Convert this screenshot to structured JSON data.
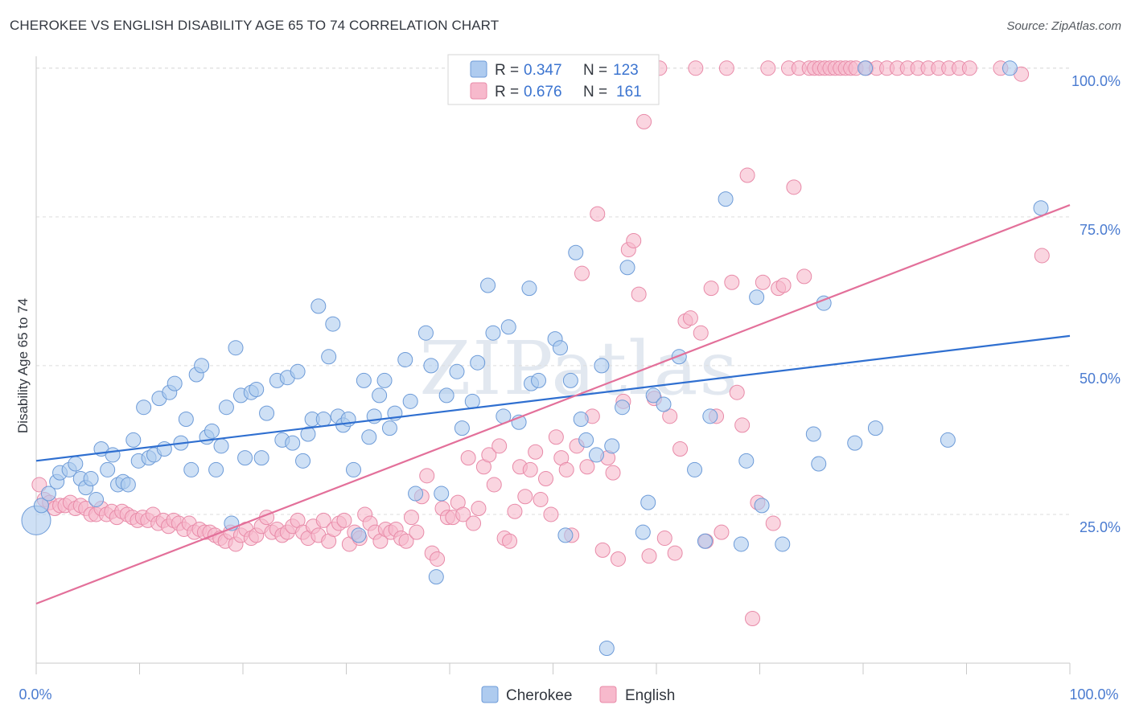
{
  "title": "CHEROKEE VS ENGLISH DISABILITY AGE 65 TO 74 CORRELATION CHART",
  "source": "Source: ZipAtlas.com",
  "watermark": "ZIPatlas",
  "colors": {
    "cherokee_fill": "#aecbef",
    "cherokee_stroke": "#6d9bd8",
    "cherokee_line": "#2f6fd0",
    "english_fill": "#f7b9cc",
    "english_stroke": "#e88aa8",
    "english_line": "#e3709a",
    "grid": "#dddddd",
    "axis_text": "#4a7bd0"
  },
  "legend": {
    "rows": [
      {
        "r_label": "R =",
        "r_value": "0.347",
        "n_label": "N =",
        "n_value": "123"
      },
      {
        "r_label": "R =",
        "r_value": "0.676",
        "n_label": "N =",
        "n_value": "161"
      }
    ]
  },
  "chart_data": {
    "type": "scatter",
    "xlabel": "",
    "ylabel": "Disability Age 65 to 74",
    "xlim": [
      0,
      100
    ],
    "ylim": [
      0,
      102
    ],
    "x_tick_labels": [
      "0.0%",
      "100.0%"
    ],
    "y_ticks": [
      {
        "value": 25,
        "label": "25.0%"
      },
      {
        "value": 50,
        "label": "50.0%"
      },
      {
        "value": 75,
        "label": "75.0%"
      },
      {
        "value": 100,
        "label": "100.0%"
      }
    ],
    "grid": "horizontal-dashed",
    "legend_position": "top-center",
    "series": [
      {
        "name": "Cherokee",
        "trend": [
          [
            0,
            34.0
          ],
          [
            100,
            55.0
          ]
        ],
        "points": [
          [
            0,
            24
          ],
          [
            0.5,
            26.5
          ],
          [
            1.2,
            28.5
          ],
          [
            2,
            30.5
          ],
          [
            2.3,
            32
          ],
          [
            3.2,
            32.5
          ],
          [
            3.8,
            33.5
          ],
          [
            4.3,
            31
          ],
          [
            4.8,
            29.5
          ],
          [
            5.3,
            31
          ],
          [
            5.8,
            27.5
          ],
          [
            6.3,
            36
          ],
          [
            6.9,
            32.5
          ],
          [
            7.4,
            35
          ],
          [
            7.9,
            30
          ],
          [
            8.4,
            30.5
          ],
          [
            8.9,
            30
          ],
          [
            9.4,
            37.5
          ],
          [
            9.9,
            34
          ],
          [
            10.4,
            43
          ],
          [
            10.9,
            34.5
          ],
          [
            11.4,
            35
          ],
          [
            11.9,
            44.5
          ],
          [
            12.4,
            36
          ],
          [
            12.9,
            45.5
          ],
          [
            13.4,
            47
          ],
          [
            14.0,
            37
          ],
          [
            14.5,
            41
          ],
          [
            15.0,
            32.5
          ],
          [
            15.5,
            48.5
          ],
          [
            16.0,
            50
          ],
          [
            16.5,
            38
          ],
          [
            17.0,
            39
          ],
          [
            17.4,
            32.5
          ],
          [
            17.9,
            36.5
          ],
          [
            18.4,
            43
          ],
          [
            18.9,
            23.5
          ],
          [
            19.3,
            53
          ],
          [
            19.8,
            45
          ],
          [
            20.2,
            34.5
          ],
          [
            20.8,
            45.5
          ],
          [
            21.3,
            46
          ],
          [
            21.8,
            34.5
          ],
          [
            22.3,
            42
          ],
          [
            23.3,
            47.5
          ],
          [
            23.8,
            37.5
          ],
          [
            24.3,
            48
          ],
          [
            24.8,
            37
          ],
          [
            25.3,
            49
          ],
          [
            25.8,
            34
          ],
          [
            26.3,
            38.5
          ],
          [
            26.7,
            41
          ],
          [
            27.3,
            60
          ],
          [
            27.8,
            41
          ],
          [
            28.3,
            51.5
          ],
          [
            28.7,
            57
          ],
          [
            29.2,
            41.5
          ],
          [
            29.7,
            40
          ],
          [
            30.2,
            41
          ],
          [
            30.7,
            32.5
          ],
          [
            31.2,
            21.5
          ],
          [
            31.7,
            47.5
          ],
          [
            32.2,
            38
          ],
          [
            32.7,
            41.5
          ],
          [
            33.2,
            45
          ],
          [
            33.7,
            47.5
          ],
          [
            34.2,
            39.5
          ],
          [
            34.7,
            42
          ],
          [
            35.7,
            51
          ],
          [
            36.2,
            44
          ],
          [
            36.7,
            28.5
          ],
          [
            37.7,
            55.5
          ],
          [
            38.2,
            50
          ],
          [
            38.7,
            14.5
          ],
          [
            39.2,
            28.5
          ],
          [
            39.7,
            45
          ],
          [
            40.7,
            49
          ],
          [
            41.2,
            39.5
          ],
          [
            42.2,
            44
          ],
          [
            42.7,
            50.5
          ],
          [
            43.7,
            63.5
          ],
          [
            44.2,
            55.5
          ],
          [
            45.2,
            41.5
          ],
          [
            45.7,
            56.5
          ],
          [
            46.7,
            40.5
          ],
          [
            47.7,
            63
          ],
          [
            47.9,
            47
          ],
          [
            48.6,
            47.5
          ],
          [
            50.2,
            54.5
          ],
          [
            50.7,
            53
          ],
          [
            51.2,
            21.5
          ],
          [
            51.7,
            47.5
          ],
          [
            52.2,
            69
          ],
          [
            52.7,
            41
          ],
          [
            53.2,
            37.5
          ],
          [
            54.2,
            35
          ],
          [
            54.7,
            50
          ],
          [
            55.2,
            2.5
          ],
          [
            55.7,
            36.5
          ],
          [
            56.7,
            43
          ],
          [
            57.2,
            66.5
          ],
          [
            58.7,
            22
          ],
          [
            59.2,
            27
          ],
          [
            59.7,
            45
          ],
          [
            60.7,
            43.5
          ],
          [
            62.2,
            51.5
          ],
          [
            63.7,
            32.5
          ],
          [
            64.7,
            20.5
          ],
          [
            65.2,
            41.5
          ],
          [
            66.7,
            78
          ],
          [
            68.2,
            20
          ],
          [
            68.7,
            34
          ],
          [
            69.7,
            61.5
          ],
          [
            70.2,
            26.5
          ],
          [
            72.2,
            20
          ],
          [
            75.2,
            38.5
          ],
          [
            75.7,
            33.5
          ],
          [
            76.2,
            60.5
          ],
          [
            79.2,
            37
          ],
          [
            80.2,
            100
          ],
          [
            81.2,
            39.5
          ],
          [
            88.2,
            37.5
          ],
          [
            94.2,
            100
          ],
          [
            97.2,
            76.5
          ]
        ]
      },
      {
        "name": "English",
        "trend": [
          [
            0,
            10.0
          ],
          [
            100,
            77.0
          ]
        ],
        "points": [
          [
            0.3,
            30
          ],
          [
            0.8,
            27.5
          ],
          [
            1.3,
            27
          ],
          [
            1.8,
            26
          ],
          [
            2.3,
            26.5
          ],
          [
            2.8,
            26.5
          ],
          [
            3.3,
            27
          ],
          [
            3.8,
            26
          ],
          [
            4.3,
            26.5
          ],
          [
            4.8,
            26
          ],
          [
            5.3,
            25
          ],
          [
            5.8,
            25
          ],
          [
            6.3,
            26
          ],
          [
            6.8,
            25
          ],
          [
            7.3,
            25.5
          ],
          [
            7.8,
            24.5
          ],
          [
            8.3,
            25.5
          ],
          [
            8.8,
            25
          ],
          [
            9.3,
            24.5
          ],
          [
            9.8,
            24
          ],
          [
            10.3,
            24.5
          ],
          [
            10.8,
            24
          ],
          [
            11.3,
            25
          ],
          [
            11.8,
            23.5
          ],
          [
            12.3,
            24
          ],
          [
            12.8,
            23
          ],
          [
            13.3,
            24
          ],
          [
            13.8,
            23.5
          ],
          [
            14.3,
            22.5
          ],
          [
            14.8,
            23.5
          ],
          [
            15.3,
            22
          ],
          [
            15.8,
            22.5
          ],
          [
            16.3,
            22
          ],
          [
            16.8,
            22
          ],
          [
            17.3,
            21.5
          ],
          [
            17.8,
            21
          ],
          [
            18.3,
            20.5
          ],
          [
            18.8,
            22
          ],
          [
            19.3,
            20
          ],
          [
            19.8,
            21.5
          ],
          [
            20.3,
            22.5
          ],
          [
            20.8,
            21
          ],
          [
            21.3,
            21.5
          ],
          [
            21.8,
            23
          ],
          [
            22.3,
            24.5
          ],
          [
            22.8,
            22
          ],
          [
            23.3,
            22.5
          ],
          [
            23.8,
            21.5
          ],
          [
            24.3,
            22
          ],
          [
            24.8,
            23
          ],
          [
            25.3,
            24
          ],
          [
            25.8,
            22
          ],
          [
            26.3,
            21
          ],
          [
            26.8,
            23
          ],
          [
            27.3,
            21.5
          ],
          [
            27.8,
            24
          ],
          [
            28.3,
            20.5
          ],
          [
            28.8,
            22.5
          ],
          [
            29.3,
            23.5
          ],
          [
            29.8,
            24
          ],
          [
            30.3,
            20
          ],
          [
            30.8,
            22
          ],
          [
            31.3,
            21
          ],
          [
            31.8,
            25
          ],
          [
            32.3,
            23.5
          ],
          [
            32.8,
            22
          ],
          [
            33.3,
            20.5
          ],
          [
            33.8,
            22.5
          ],
          [
            34.3,
            22
          ],
          [
            34.8,
            22.5
          ],
          [
            35.3,
            21
          ],
          [
            35.8,
            20.5
          ],
          [
            36.3,
            24.5
          ],
          [
            36.8,
            22
          ],
          [
            37.3,
            28
          ],
          [
            37.8,
            31.5
          ],
          [
            38.3,
            18.5
          ],
          [
            38.8,
            17.5
          ],
          [
            39.3,
            26
          ],
          [
            39.8,
            24.5
          ],
          [
            40.3,
            24.5
          ],
          [
            40.8,
            27
          ],
          [
            41.3,
            25
          ],
          [
            41.8,
            34.5
          ],
          [
            42.3,
            23.5
          ],
          [
            42.8,
            26
          ],
          [
            43.3,
            33
          ],
          [
            43.8,
            35
          ],
          [
            44.3,
            30
          ],
          [
            44.8,
            36.5
          ],
          [
            45.3,
            21
          ],
          [
            45.8,
            20.5
          ],
          [
            46.3,
            25.5
          ],
          [
            46.8,
            33
          ],
          [
            47.3,
            28
          ],
          [
            47.8,
            32.5
          ],
          [
            48.3,
            35.5
          ],
          [
            48.8,
            27.5
          ],
          [
            49.3,
            31
          ],
          [
            49.8,
            25
          ],
          [
            50.3,
            38
          ],
          [
            50.8,
            34.5
          ],
          [
            51.3,
            32.5
          ],
          [
            51.8,
            21.5
          ],
          [
            52.3,
            36.5
          ],
          [
            52.8,
            65.5
          ],
          [
            53.3,
            33
          ],
          [
            53.8,
            41.5
          ],
          [
            54.3,
            75.5
          ],
          [
            54.8,
            19
          ],
          [
            55.3,
            34.5
          ],
          [
            55.8,
            32
          ],
          [
            56.3,
            17.5
          ],
          [
            56.8,
            44
          ],
          [
            57.3,
            69.5
          ],
          [
            57.8,
            71
          ],
          [
            58.3,
            62
          ],
          [
            58.8,
            91
          ],
          [
            59.3,
            18
          ],
          [
            59.8,
            44.5
          ],
          [
            60.3,
            100
          ],
          [
            60.8,
            21
          ],
          [
            61.3,
            41.5
          ],
          [
            61.8,
            18.5
          ],
          [
            62.3,
            36
          ],
          [
            62.8,
            57.5
          ],
          [
            63.3,
            58
          ],
          [
            63.8,
            100
          ],
          [
            64.3,
            55.5
          ],
          [
            64.8,
            20.5
          ],
          [
            65.3,
            63
          ],
          [
            65.8,
            41.5
          ],
          [
            66.3,
            22
          ],
          [
            66.8,
            100
          ],
          [
            67.3,
            64
          ],
          [
            67.8,
            45.5
          ],
          [
            68.3,
            40
          ],
          [
            68.8,
            82
          ],
          [
            69.3,
            7.5
          ],
          [
            69.8,
            27
          ],
          [
            70.3,
            64
          ],
          [
            70.8,
            100
          ],
          [
            71.3,
            23.5
          ],
          [
            71.8,
            63
          ],
          [
            72.3,
            63.5
          ],
          [
            72.8,
            100
          ],
          [
            73.3,
            80
          ],
          [
            73.8,
            100
          ],
          [
            74.3,
            65
          ],
          [
            74.8,
            100
          ],
          [
            75.3,
            100
          ],
          [
            75.8,
            100
          ],
          [
            76.3,
            100
          ],
          [
            76.8,
            100
          ],
          [
            77.3,
            100
          ],
          [
            77.8,
            100
          ],
          [
            78.3,
            100
          ],
          [
            78.8,
            100
          ],
          [
            79.3,
            100
          ],
          [
            80.3,
            100
          ],
          [
            81.3,
            100
          ],
          [
            82.3,
            100
          ],
          [
            83.3,
            100
          ],
          [
            84.3,
            100
          ],
          [
            85.3,
            100
          ],
          [
            86.3,
            100
          ],
          [
            87.3,
            100
          ],
          [
            88.3,
            100
          ],
          [
            89.3,
            100
          ],
          [
            90.3,
            100
          ],
          [
            93.3,
            100
          ],
          [
            95.3,
            99
          ],
          [
            97.3,
            68.5
          ]
        ]
      }
    ]
  }
}
